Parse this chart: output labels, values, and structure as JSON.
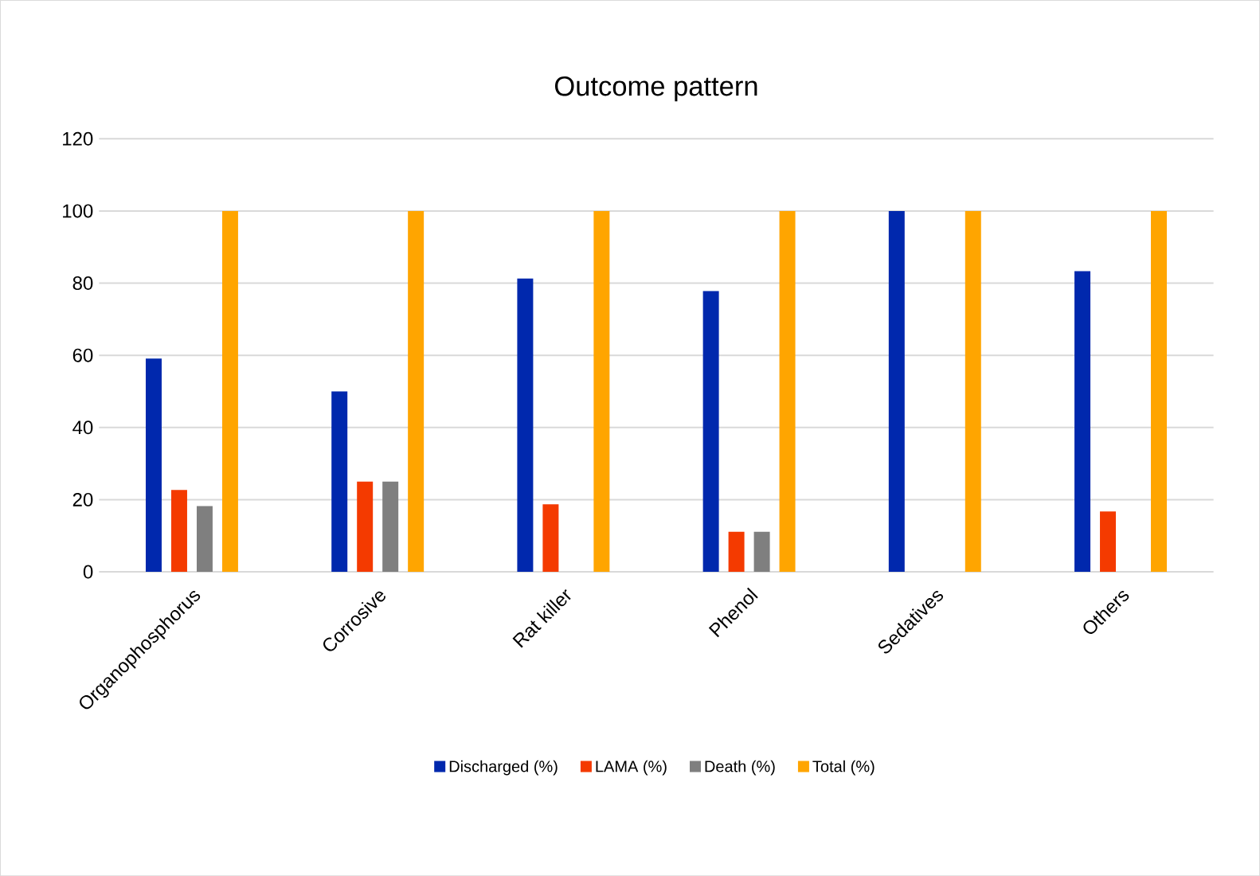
{
  "chart_data": {
    "type": "bar",
    "title": "Outcome pattern",
    "categories": [
      "Organophosphorus",
      "Corrosive",
      "Rat killer",
      "Phenol",
      "Sedatives",
      "Others"
    ],
    "series": [
      {
        "name": "Discharged (%)",
        "color": "#0028ad",
        "values": [
          59.1,
          50,
          81.3,
          77.8,
          100,
          83.3
        ]
      },
      {
        "name": "LAMA (%)",
        "color": "#f43a00",
        "values": [
          22.7,
          25,
          18.7,
          11.1,
          0,
          16.7
        ]
      },
      {
        "name": "Death (%)",
        "color": "#7f7f7f",
        "values": [
          18.2,
          25,
          0,
          11.1,
          0,
          0
        ]
      },
      {
        "name": "Total (%)",
        "color": "#ffa500",
        "values": [
          100,
          100,
          100,
          100,
          100,
          100
        ]
      }
    ],
    "ylim": [
      0,
      120
    ],
    "yticks": [
      0,
      20,
      40,
      60,
      80,
      100,
      120
    ],
    "grid": "y",
    "legend": "bottom"
  }
}
